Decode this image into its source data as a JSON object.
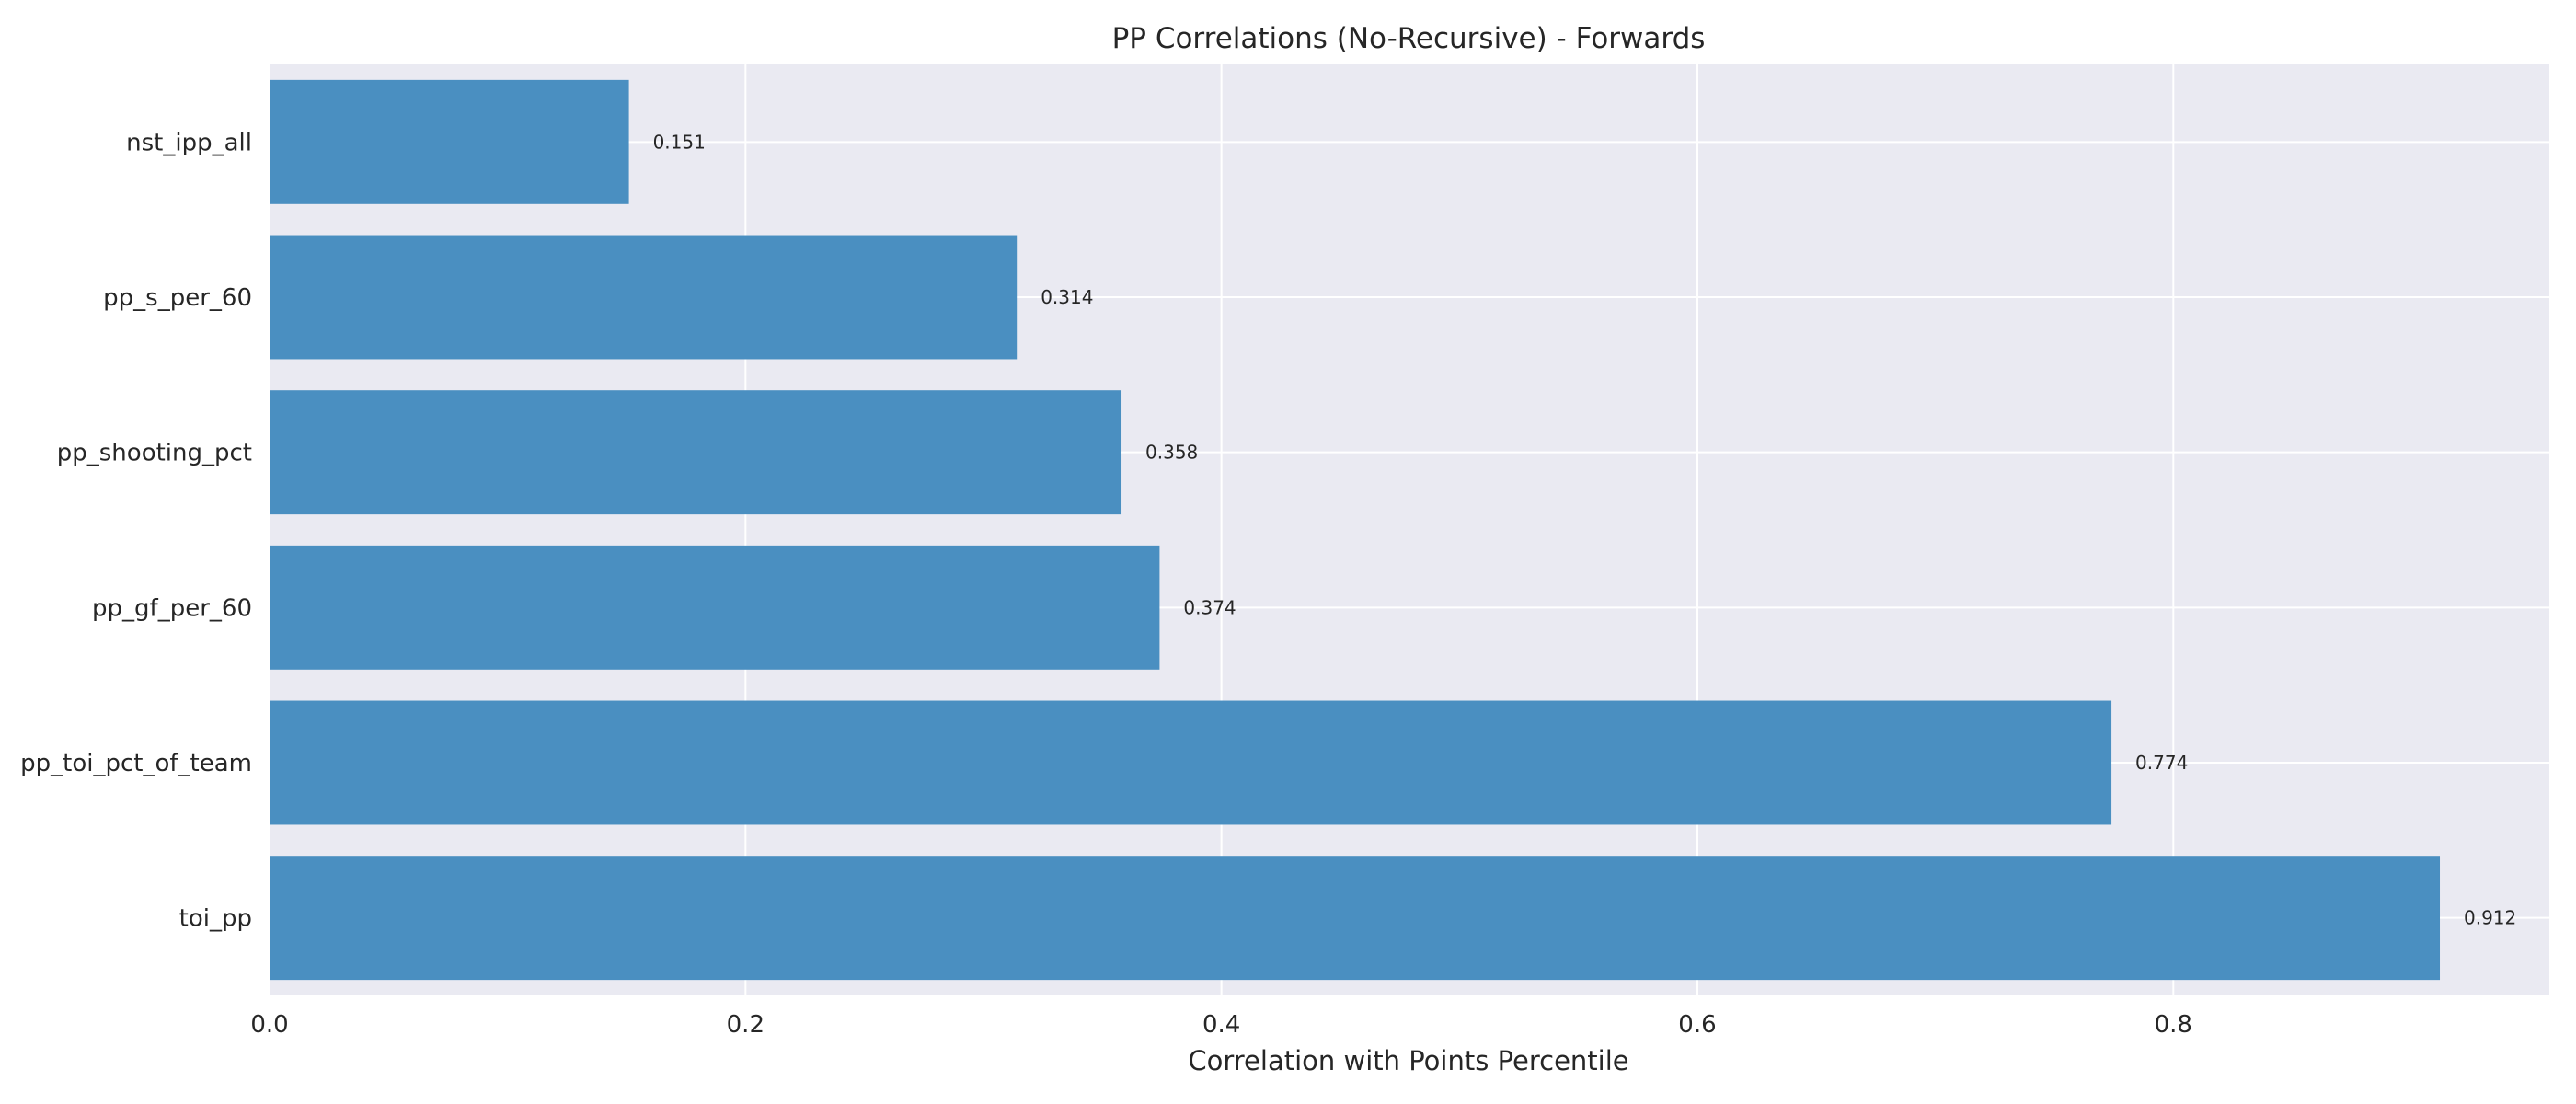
{
  "chart_data": {
    "type": "bar",
    "orientation": "horizontal",
    "title": "PP Correlations (No-Recursive) - Forwards",
    "xlabel": "Correlation with Points Percentile",
    "ylabel": "",
    "categories": [
      "nst_ipp_all",
      "pp_s_per_60",
      "pp_shooting_pct",
      "pp_gf_per_60",
      "pp_toi_pct_of_team",
      "toi_pp"
    ],
    "values": [
      0.151,
      0.314,
      0.358,
      0.374,
      0.774,
      0.912
    ],
    "value_labels": [
      "0.151",
      "0.314",
      "0.358",
      "0.374",
      "0.774",
      "0.912"
    ],
    "xlim": [
      0,
      0.958
    ],
    "xticks": [
      0.0,
      0.2,
      0.4,
      0.6,
      0.8
    ],
    "xtick_labels": [
      "0.0",
      "0.2",
      "0.4",
      "0.6",
      "0.8"
    ],
    "grid": true,
    "colors": {
      "bar": "#4a8fc1",
      "background": "#eaeaf2",
      "grid": "#ffffff"
    }
  }
}
